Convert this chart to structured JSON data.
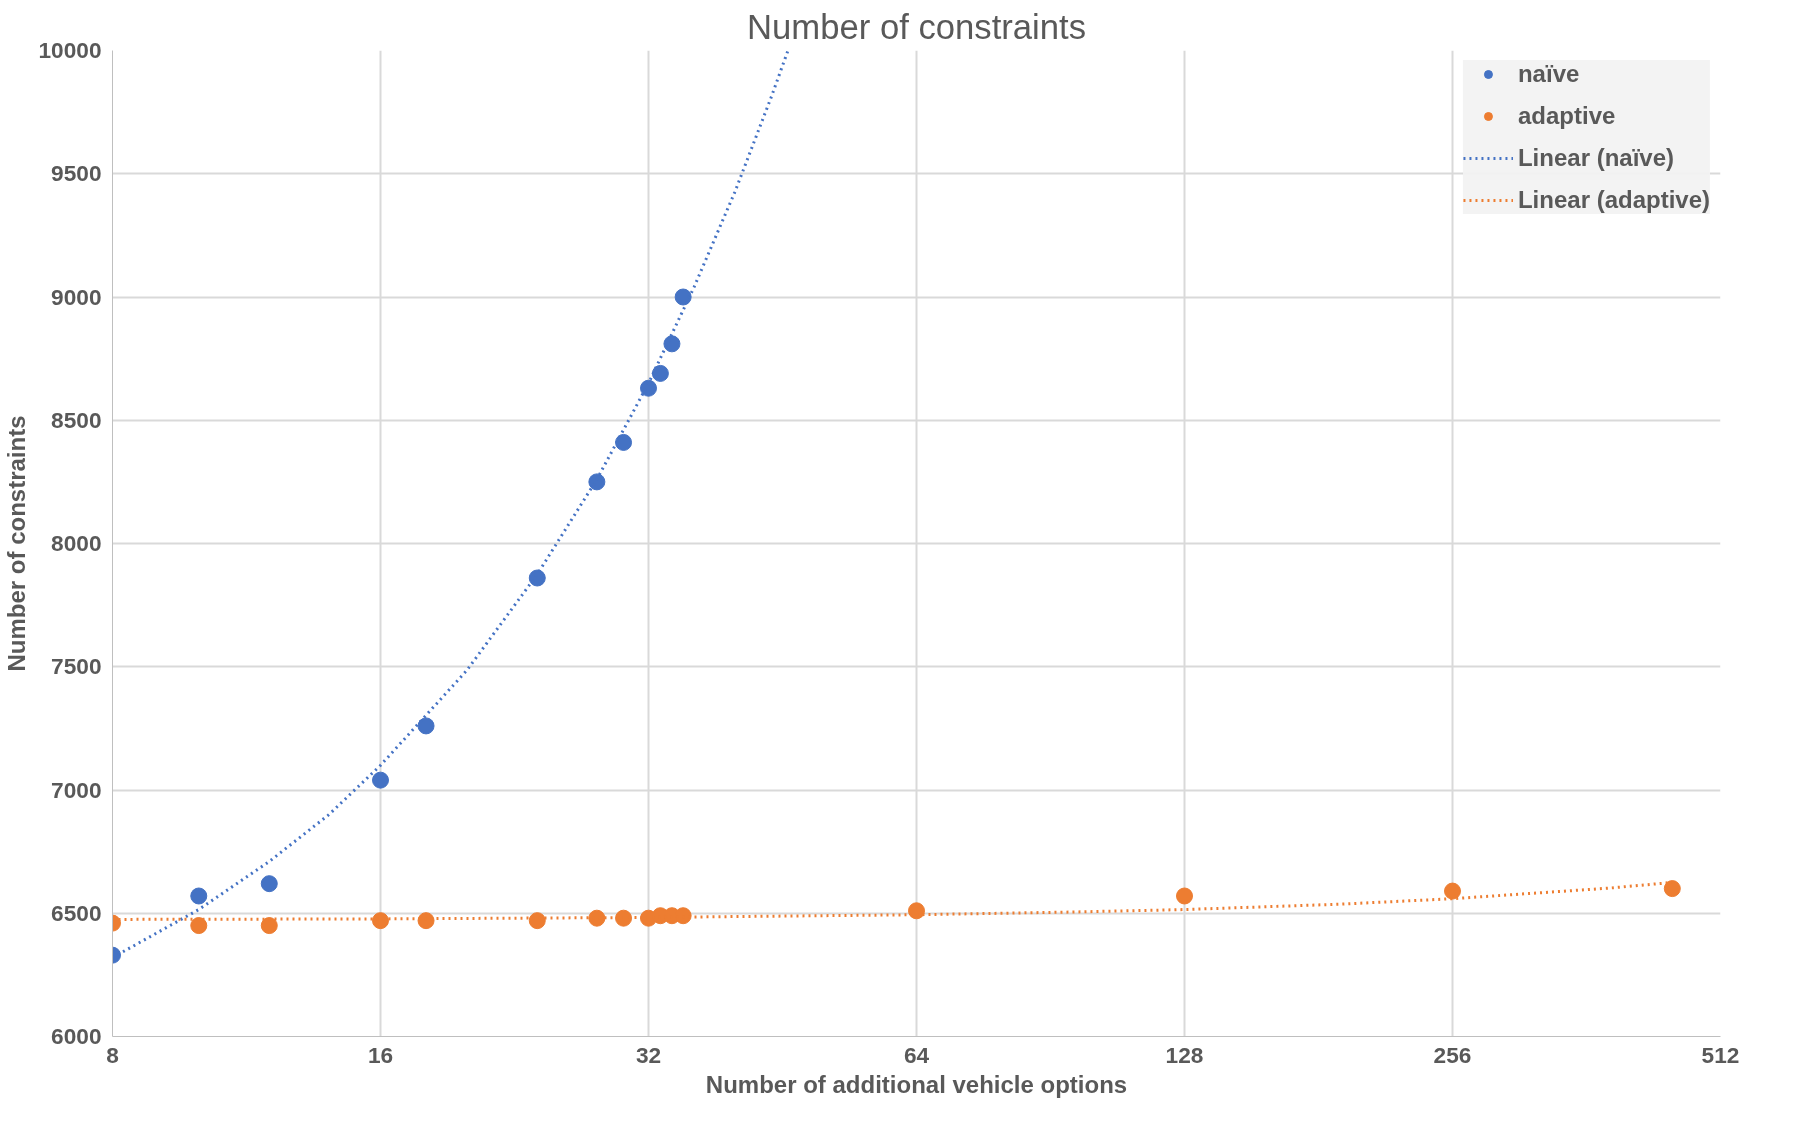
{
  "chart_data": {
    "type": "scatter",
    "title": "Number of constraints",
    "xlabel": "Number of additional vehicle options",
    "ylabel": "Number of constraints",
    "log": "x",
    "xlim": [
      8,
      512
    ],
    "xticks": [
      8,
      16,
      32,
      64,
      128,
      256,
      512
    ],
    "ylim": [
      6000,
      10000
    ],
    "yticks": [
      6000,
      6500,
      7000,
      7500,
      8000,
      8500,
      9000,
      9500,
      10000
    ],
    "grid": true,
    "legend": "top right",
    "series": [
      {
        "name": "naïve",
        "marker": "circle",
        "color": "#4472c4",
        "x": [
          8,
          10,
          12,
          16,
          18,
          24,
          28,
          30,
          32,
          33,
          34,
          35
        ],
        "values": [
          6330,
          6570,
          6620,
          7040,
          7260,
          7860,
          8250,
          8410,
          8630,
          8690,
          8810,
          9000
        ]
      },
      {
        "name": "adaptive",
        "marker": "circle",
        "color": "#ed7d31",
        "x": [
          8,
          10,
          12,
          16,
          18,
          24,
          28,
          30,
          32,
          33,
          34,
          35,
          64,
          128,
          256,
          452
        ],
        "values": [
          6460,
          6450,
          6450,
          6470,
          6470,
          6470,
          6480,
          6480,
          6480,
          6490,
          6490,
          6490,
          6510,
          6570,
          6590,
          6600
        ]
      },
      {
        "name": "Linear (naïve)",
        "type": "line",
        "line_style": "dotted",
        "color": "#4472c4",
        "x": [
          8,
          10,
          12,
          14,
          16,
          20,
          24,
          28,
          32,
          36,
          40,
          44,
          45.9
        ],
        "values": [
          6320,
          6515,
          6710,
          6900,
          7100,
          7485,
          7875,
          8260,
          8650,
          9040,
          9425,
          9815,
          10000
        ]
      },
      {
        "name": "Linear (adaptive)",
        "type": "line",
        "line_style": "dotted",
        "color": "#ed7d31",
        "x": [
          8,
          16,
          32,
          64,
          96,
          128,
          192,
          256,
          384,
          452
        ],
        "values": [
          6475,
          6477,
          6483,
          6494,
          6505,
          6515,
          6537,
          6559,
          6602,
          6625
        ]
      }
    ]
  }
}
